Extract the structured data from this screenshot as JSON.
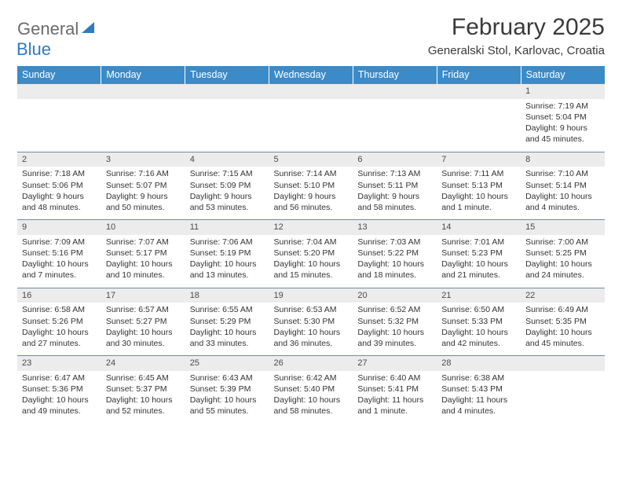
{
  "logo": {
    "word1": "General",
    "word2": "Blue"
  },
  "title": "February 2025",
  "location": "Generalski Stol, Karlovac, Croatia",
  "colors": {
    "header_bg": "#3b8bc8",
    "header_text": "#ffffff",
    "daynum_bg": "#ececec",
    "border": "#6d8aa8",
    "logo_general": "#6b6b6b",
    "logo_blue": "#2f7bbf",
    "text": "#333333"
  },
  "day_headers": [
    "Sunday",
    "Monday",
    "Tuesday",
    "Wednesday",
    "Thursday",
    "Friday",
    "Saturday"
  ],
  "weeks": [
    [
      null,
      null,
      null,
      null,
      null,
      null,
      {
        "n": "1",
        "sunrise": "Sunrise: 7:19 AM",
        "sunset": "Sunset: 5:04 PM",
        "daylight": "Daylight: 9 hours and 45 minutes."
      }
    ],
    [
      {
        "n": "2",
        "sunrise": "Sunrise: 7:18 AM",
        "sunset": "Sunset: 5:06 PM",
        "daylight": "Daylight: 9 hours and 48 minutes."
      },
      {
        "n": "3",
        "sunrise": "Sunrise: 7:16 AM",
        "sunset": "Sunset: 5:07 PM",
        "daylight": "Daylight: 9 hours and 50 minutes."
      },
      {
        "n": "4",
        "sunrise": "Sunrise: 7:15 AM",
        "sunset": "Sunset: 5:09 PM",
        "daylight": "Daylight: 9 hours and 53 minutes."
      },
      {
        "n": "5",
        "sunrise": "Sunrise: 7:14 AM",
        "sunset": "Sunset: 5:10 PM",
        "daylight": "Daylight: 9 hours and 56 minutes."
      },
      {
        "n": "6",
        "sunrise": "Sunrise: 7:13 AM",
        "sunset": "Sunset: 5:11 PM",
        "daylight": "Daylight: 9 hours and 58 minutes."
      },
      {
        "n": "7",
        "sunrise": "Sunrise: 7:11 AM",
        "sunset": "Sunset: 5:13 PM",
        "daylight": "Daylight: 10 hours and 1 minute."
      },
      {
        "n": "8",
        "sunrise": "Sunrise: 7:10 AM",
        "sunset": "Sunset: 5:14 PM",
        "daylight": "Daylight: 10 hours and 4 minutes."
      }
    ],
    [
      {
        "n": "9",
        "sunrise": "Sunrise: 7:09 AM",
        "sunset": "Sunset: 5:16 PM",
        "daylight": "Daylight: 10 hours and 7 minutes."
      },
      {
        "n": "10",
        "sunrise": "Sunrise: 7:07 AM",
        "sunset": "Sunset: 5:17 PM",
        "daylight": "Daylight: 10 hours and 10 minutes."
      },
      {
        "n": "11",
        "sunrise": "Sunrise: 7:06 AM",
        "sunset": "Sunset: 5:19 PM",
        "daylight": "Daylight: 10 hours and 13 minutes."
      },
      {
        "n": "12",
        "sunrise": "Sunrise: 7:04 AM",
        "sunset": "Sunset: 5:20 PM",
        "daylight": "Daylight: 10 hours and 15 minutes."
      },
      {
        "n": "13",
        "sunrise": "Sunrise: 7:03 AM",
        "sunset": "Sunset: 5:22 PM",
        "daylight": "Daylight: 10 hours and 18 minutes."
      },
      {
        "n": "14",
        "sunrise": "Sunrise: 7:01 AM",
        "sunset": "Sunset: 5:23 PM",
        "daylight": "Daylight: 10 hours and 21 minutes."
      },
      {
        "n": "15",
        "sunrise": "Sunrise: 7:00 AM",
        "sunset": "Sunset: 5:25 PM",
        "daylight": "Daylight: 10 hours and 24 minutes."
      }
    ],
    [
      {
        "n": "16",
        "sunrise": "Sunrise: 6:58 AM",
        "sunset": "Sunset: 5:26 PM",
        "daylight": "Daylight: 10 hours and 27 minutes."
      },
      {
        "n": "17",
        "sunrise": "Sunrise: 6:57 AM",
        "sunset": "Sunset: 5:27 PM",
        "daylight": "Daylight: 10 hours and 30 minutes."
      },
      {
        "n": "18",
        "sunrise": "Sunrise: 6:55 AM",
        "sunset": "Sunset: 5:29 PM",
        "daylight": "Daylight: 10 hours and 33 minutes."
      },
      {
        "n": "19",
        "sunrise": "Sunrise: 6:53 AM",
        "sunset": "Sunset: 5:30 PM",
        "daylight": "Daylight: 10 hours and 36 minutes."
      },
      {
        "n": "20",
        "sunrise": "Sunrise: 6:52 AM",
        "sunset": "Sunset: 5:32 PM",
        "daylight": "Daylight: 10 hours and 39 minutes."
      },
      {
        "n": "21",
        "sunrise": "Sunrise: 6:50 AM",
        "sunset": "Sunset: 5:33 PM",
        "daylight": "Daylight: 10 hours and 42 minutes."
      },
      {
        "n": "22",
        "sunrise": "Sunrise: 6:49 AM",
        "sunset": "Sunset: 5:35 PM",
        "daylight": "Daylight: 10 hours and 45 minutes."
      }
    ],
    [
      {
        "n": "23",
        "sunrise": "Sunrise: 6:47 AM",
        "sunset": "Sunset: 5:36 PM",
        "daylight": "Daylight: 10 hours and 49 minutes."
      },
      {
        "n": "24",
        "sunrise": "Sunrise: 6:45 AM",
        "sunset": "Sunset: 5:37 PM",
        "daylight": "Daylight: 10 hours and 52 minutes."
      },
      {
        "n": "25",
        "sunrise": "Sunrise: 6:43 AM",
        "sunset": "Sunset: 5:39 PM",
        "daylight": "Daylight: 10 hours and 55 minutes."
      },
      {
        "n": "26",
        "sunrise": "Sunrise: 6:42 AM",
        "sunset": "Sunset: 5:40 PM",
        "daylight": "Daylight: 10 hours and 58 minutes."
      },
      {
        "n": "27",
        "sunrise": "Sunrise: 6:40 AM",
        "sunset": "Sunset: 5:41 PM",
        "daylight": "Daylight: 11 hours and 1 minute."
      },
      {
        "n": "28",
        "sunrise": "Sunrise: 6:38 AM",
        "sunset": "Sunset: 5:43 PM",
        "daylight": "Daylight: 11 hours and 4 minutes."
      },
      null
    ]
  ]
}
